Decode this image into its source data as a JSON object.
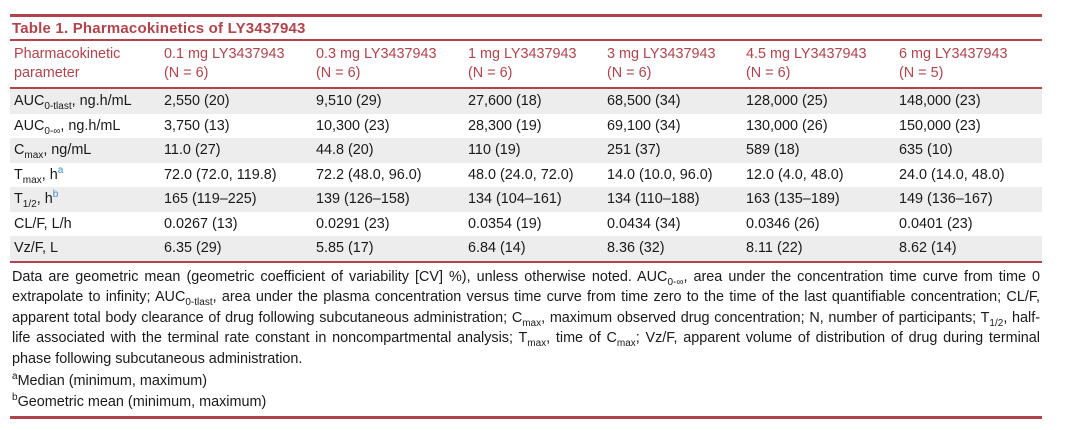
{
  "title": "Table 1.  Pharmacokinetics of LY3437943",
  "colors": {
    "accent": "#b0434c",
    "row_shade": "#ededed",
    "footnote_marker": "#3a8fc8"
  },
  "header": {
    "param": "Pharmacokinetic parameter",
    "doses": [
      {
        "line1": "0.1 mg LY3437943",
        "line2": "(N = 6)"
      },
      {
        "line1": "0.3 mg LY3437943",
        "line2": "(N = 6)"
      },
      {
        "line1": "1 mg LY3437943",
        "line2": "(N = 6)"
      },
      {
        "line1": "3 mg LY3437943",
        "line2": "(N = 6)"
      },
      {
        "line1": "4.5 mg LY3437943",
        "line2": "(N = 6)"
      },
      {
        "line1": "6 mg LY3437943",
        "line2": "(N = 5)"
      }
    ]
  },
  "rows": [
    {
      "label": {
        "main": "AUC",
        "sub": "0-tlast",
        "rest": ", ng.h/mL"
      },
      "values": [
        "2,550 (20)",
        "9,510 (29)",
        "27,600 (18)",
        "68,500 (34)",
        "128,000 (25)",
        "148,000 (23)"
      ]
    },
    {
      "label": {
        "main": "AUC",
        "sub": "0-∞",
        "rest": ", ng.h/mL"
      },
      "values": [
        "3,750 (13)",
        "10,300 (23)",
        "28,300 (19)",
        "69,100 (34)",
        "130,000 (26)",
        "150,000 (23)"
      ]
    },
    {
      "label": {
        "main": "C",
        "sub": "max",
        "rest": ", ng/mL"
      },
      "values": [
        "11.0 (27)",
        "44.8 (20)",
        "110 (19)",
        "251 (37)",
        "589 (18)",
        "635 (10)"
      ]
    },
    {
      "label": {
        "main": "T",
        "sub": "max",
        "rest": ", h",
        "sup": "a"
      },
      "values": [
        "72.0 (72.0, 119.8)",
        "72.2 (48.0, 96.0)",
        "48.0 (24.0, 72.0)",
        "14.0 (10.0, 96.0)",
        "12.0 (4.0, 48.0)",
        "24.0 (14.0, 48.0)"
      ]
    },
    {
      "label": {
        "main": "T",
        "sub": "1/2",
        "rest": ", h",
        "sup": "b"
      },
      "values": [
        "165 (119–225)",
        "139 (126–158)",
        "134 (104–161)",
        "134 (110–188)",
        "163 (135–189)",
        "149 (136–167)"
      ]
    },
    {
      "label": {
        "main": "CL/F, L/h",
        "sub": "",
        "rest": ""
      },
      "values": [
        "0.0267 (13)",
        "0.0291 (23)",
        "0.0354 (19)",
        "0.0434 (34)",
        "0.0346 (26)",
        "0.0401 (23)"
      ]
    },
    {
      "label": {
        "main": "Vz/F, L",
        "sub": "",
        "rest": ""
      },
      "values": [
        "6.35 (29)",
        "5.85 (17)",
        "6.84 (14)",
        "8.36 (32)",
        "8.11 (22)",
        "8.62 (14)"
      ]
    }
  ],
  "notes": {
    "n1": "Data are geometric mean (geometric coefficient of variability [CV] %), unless otherwise noted. AUC",
    "n1_sub": "0-∞",
    "n2": ", area under the concentration time curve from time 0 extrapolate to infinity; AUC",
    "n2_sub": "0-tlast",
    "n3": ", area under the plasma concentration versus time curve from time zero to the time of the last quantifiable concentration; CL/F, apparent total body clearance of drug following subcutaneous administration; C",
    "n3_sub": "max",
    "n4": ", maximum observed drug concentration; N, number of participants; T",
    "n4_sub": "1/2",
    "n5": ", half-life associated with the terminal rate constant in noncompartmental analysis; T",
    "n5_sub": "max",
    "n6": ", time of C",
    "n6_sub": "max",
    "n7": "; Vz/F, apparent volume of distribution of drug during terminal phase following subcutaneous administration."
  },
  "footnotes": [
    {
      "marker": "a",
      "text": "Median (minimum, maximum)"
    },
    {
      "marker": "b",
      "text": "Geometric mean (minimum, maximum)"
    }
  ]
}
